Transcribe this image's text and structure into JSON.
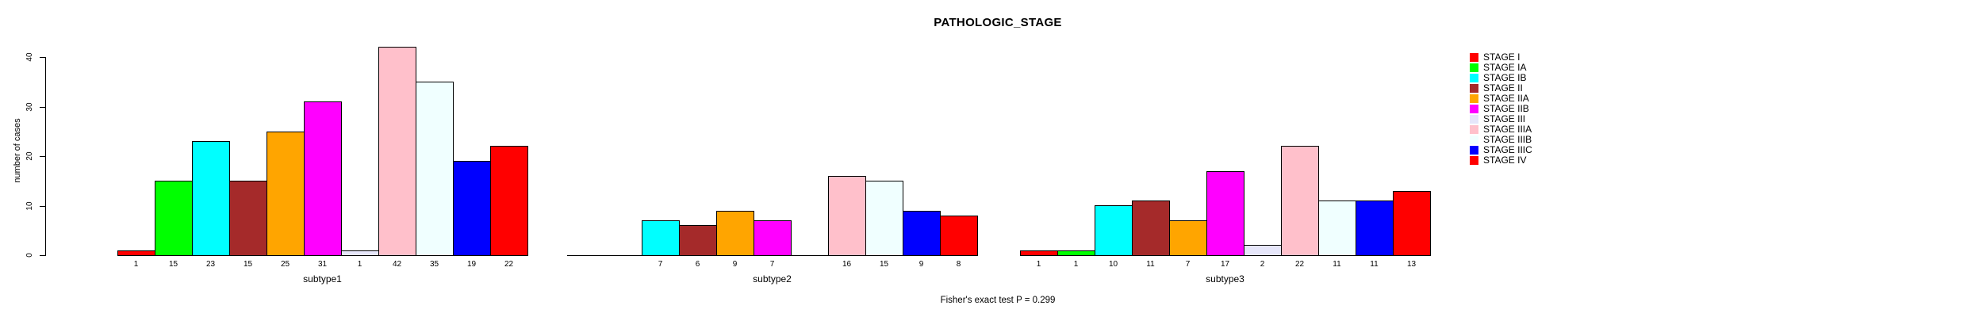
{
  "title": "PATHOLOGIC_STAGE",
  "footer": "Fisher's exact test P = 0.299",
  "y_axis": {
    "label": "number of cases"
  },
  "chart_data": {
    "type": "bar",
    "title": "PATHOLOGIC_STAGE",
    "ylabel": "number of cases",
    "xlabel": "",
    "ylim": [
      0,
      40
    ],
    "yticks": [
      0,
      10,
      20,
      30,
      40
    ],
    "grid": false,
    "legend_position": "right",
    "bar_value_labels": true,
    "categories": [
      "subtype1",
      "subtype2",
      "subtype3"
    ],
    "series": [
      {
        "name": "STAGE I",
        "color": "#FF0000",
        "values": [
          1,
          0,
          1
        ]
      },
      {
        "name": "STAGE IA",
        "color": "#00FF00",
        "values": [
          15,
          0,
          1
        ]
      },
      {
        "name": "STAGE IB",
        "color": "#00FFFF",
        "values": [
          23,
          7,
          10
        ]
      },
      {
        "name": "STAGE II",
        "color": "#A52A2A",
        "values": [
          15,
          6,
          11
        ]
      },
      {
        "name": "STAGE IIA",
        "color": "#FFA500",
        "values": [
          25,
          9,
          7
        ]
      },
      {
        "name": "STAGE IIB",
        "color": "#FF00FF",
        "values": [
          31,
          7,
          17
        ]
      },
      {
        "name": "STAGE III",
        "color": "#E6E6FA",
        "values": [
          1,
          0,
          2
        ]
      },
      {
        "name": "STAGE IIIA",
        "color": "#FFC0CB",
        "values": [
          42,
          16,
          22
        ]
      },
      {
        "name": "STAGE IIIB",
        "color": "#F0FFFF",
        "values": [
          35,
          15,
          11
        ]
      },
      {
        "name": "STAGE IIIC",
        "color": "#0000FF",
        "values": [
          19,
          9,
          11
        ]
      },
      {
        "name": "STAGE IV",
        "color": "#FF0000",
        "values": [
          22,
          8,
          13
        ]
      }
    ],
    "annotation": "Fisher's exact test P = 0.299"
  }
}
